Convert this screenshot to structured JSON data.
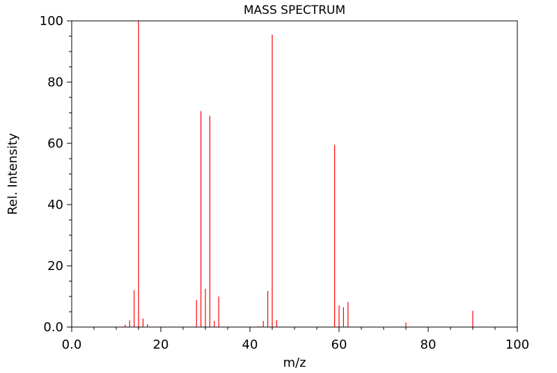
{
  "chart_data": {
    "type": "bar",
    "title": "MASS SPECTRUM",
    "xlabel": "m/z",
    "ylabel": "Rel. Intensity",
    "xlim": [
      0,
      100
    ],
    "ylim": [
      0,
      100
    ],
    "x_ticks": [
      "0.0",
      "20",
      "40",
      "60",
      "80",
      "100"
    ],
    "y_ticks": [
      "0.0",
      "20",
      "40",
      "60",
      "80",
      "100"
    ],
    "grid": false,
    "series_color": "#ff0000",
    "series": [
      {
        "x": [
          12,
          13,
          14,
          15,
          16,
          17,
          28,
          29,
          30,
          31,
          32,
          33,
          42,
          43,
          44,
          45,
          46,
          59,
          60,
          61,
          62,
          75,
          90
        ],
        "values": [
          0.8,
          2.2,
          12.0,
          100.0,
          2.8,
          1.0,
          8.8,
          70.5,
          12.5,
          69.0,
          2.0,
          10.0,
          0.3,
          2.0,
          11.8,
          95.5,
          2.3,
          59.5,
          7.0,
          6.5,
          8.2,
          1.5,
          5.3
        ]
      }
    ]
  }
}
